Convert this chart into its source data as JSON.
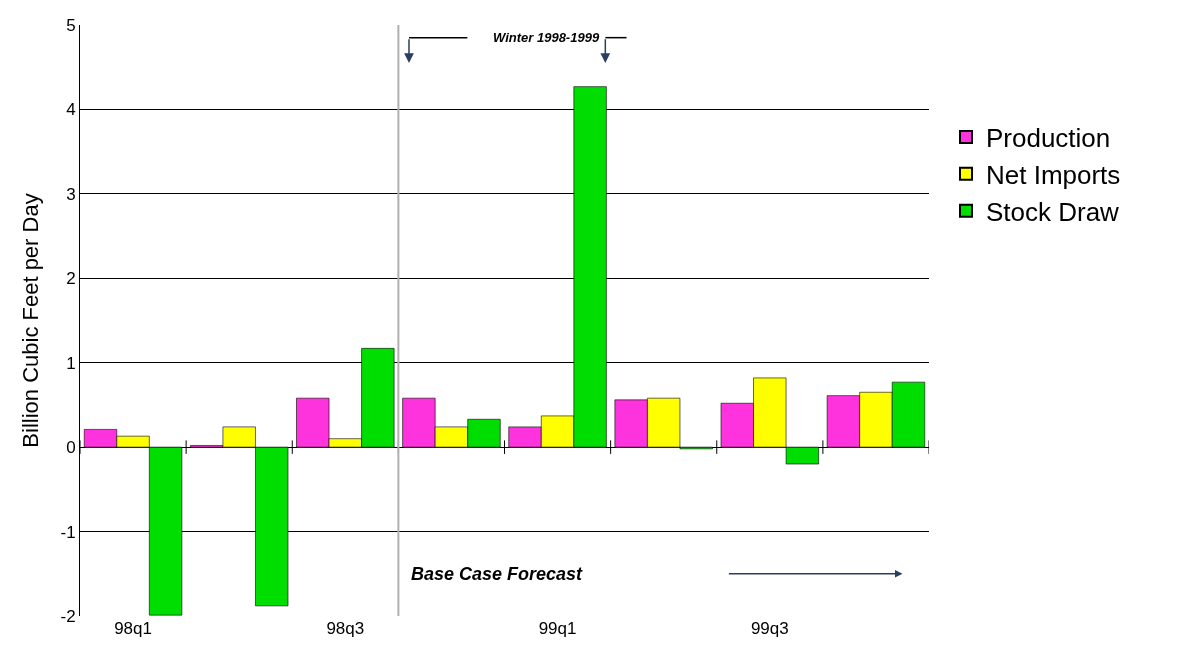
{
  "chart_data": {
    "type": "bar",
    "ylabel": "Billion Cubic Feet per Day",
    "categories": [
      "98q1",
      null,
      "98q3",
      null,
      "99q1",
      null,
      "99q3",
      null
    ],
    "series": [
      {
        "name": "Production",
        "color": "#ff33dd",
        "values": [
          0.21,
          0.02,
          0.58,
          0.58,
          0.24,
          0.56,
          0.52,
          0.61
        ]
      },
      {
        "name": "Net Imports",
        "color": "#ffff00",
        "values": [
          0.13,
          0.24,
          0.1,
          0.24,
          0.37,
          0.58,
          0.82,
          0.65
        ]
      },
      {
        "name": "Stock Draw",
        "color": "#00dd00",
        "values": [
          -1.99,
          -1.88,
          1.17,
          0.33,
          4.27,
          -0.02,
          -0.2,
          0.77
        ]
      }
    ],
    "ylim": [
      -2,
      5
    ],
    "yticks": [
      -2,
      -1,
      0,
      1,
      2,
      3,
      4,
      5
    ],
    "grid": "y",
    "legend": "right",
    "annotations": [
      "Winter 1998-1999",
      "Base Case Forecast"
    ]
  }
}
